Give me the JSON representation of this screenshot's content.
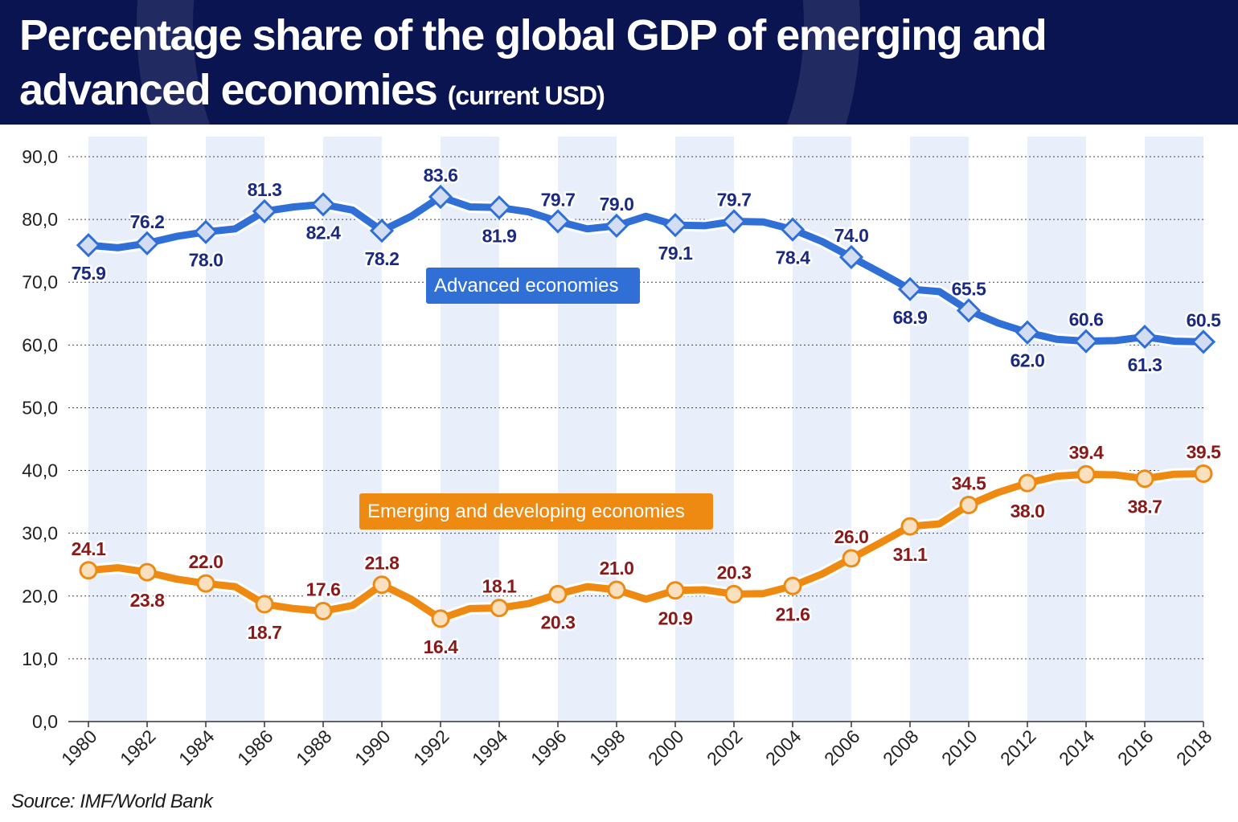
{
  "header": {
    "title": "Percentage share of the global GDP of emerging and advanced economies",
    "subtitle": "(current USD)"
  },
  "source": "Source: IMF/World Bank",
  "colors": {
    "header_bg": "#0a1450",
    "advanced": "#2f6fd6",
    "emerging": "#ee8a12",
    "band": "#e8effa"
  },
  "chart_data": {
    "type": "line",
    "title": "Percentage share of the global GDP of emerging and advanced economies",
    "subtitle": "(current USD)",
    "xlabel": "",
    "ylabel": "",
    "ylim": [
      0,
      90
    ],
    "yticks": [
      0,
      10,
      20,
      30,
      40,
      50,
      60,
      70,
      80,
      90
    ],
    "ytick_labels": [
      "0,0",
      "10,0",
      "20,0",
      "30,0",
      "40,0",
      "50,0",
      "60,0",
      "70,0",
      "80,0",
      "90,0"
    ],
    "grid": "horizontal dashed",
    "x": [
      1980,
      1981,
      1982,
      1983,
      1984,
      1985,
      1986,
      1987,
      1988,
      1989,
      1990,
      1991,
      1992,
      1993,
      1994,
      1995,
      1996,
      1997,
      1998,
      1999,
      2000,
      2001,
      2002,
      2003,
      2004,
      2005,
      2006,
      2007,
      2008,
      2009,
      2010,
      2011,
      2012,
      2013,
      2014,
      2015,
      2016,
      2017,
      2018
    ],
    "xtick_labels": [
      "1980",
      "1982",
      "1984",
      "1986",
      "1988",
      "1990",
      "1992",
      "1994",
      "1996",
      "1998",
      "2000",
      "2002",
      "2004",
      "2006",
      "2008",
      "2010",
      "2012",
      "2014",
      "2016",
      "2018"
    ],
    "series": [
      {
        "name": "Advanced economies",
        "marker": "diamond",
        "values": [
          75.9,
          75.5,
          76.2,
          77.3,
          78.0,
          78.5,
          81.3,
          82.0,
          82.4,
          81.5,
          78.2,
          80.5,
          83.6,
          82.0,
          81.9,
          81.2,
          79.7,
          78.5,
          79.0,
          80.5,
          79.1,
          79.0,
          79.7,
          79.6,
          78.4,
          76.5,
          74.0,
          71.5,
          68.9,
          68.5,
          65.5,
          63.5,
          62.0,
          60.9,
          60.6,
          60.7,
          61.3,
          60.6,
          60.5
        ]
      },
      {
        "name": "Emerging and developing economies",
        "marker": "circle",
        "values": [
          24.1,
          24.5,
          23.8,
          22.7,
          22.0,
          21.5,
          18.7,
          18.0,
          17.6,
          18.5,
          21.8,
          19.5,
          16.4,
          18.0,
          18.1,
          18.8,
          20.3,
          21.5,
          21.0,
          19.5,
          20.9,
          21.0,
          20.3,
          20.4,
          21.6,
          23.5,
          26.0,
          28.5,
          31.1,
          31.5,
          34.5,
          36.5,
          38.0,
          39.1,
          39.4,
          39.3,
          38.7,
          39.4,
          39.5
        ]
      }
    ],
    "data_labels": {
      "advanced": [
        {
          "year": 1980,
          "text": "75.9"
        },
        {
          "year": 1982,
          "text": "76.2"
        },
        {
          "year": 1984,
          "text": "78.0"
        },
        {
          "year": 1986,
          "text": "81.3"
        },
        {
          "year": 1988,
          "text": "82.4"
        },
        {
          "year": 1990,
          "text": "78.2"
        },
        {
          "year": 1992,
          "text": "83.6"
        },
        {
          "year": 1994,
          "text": "81.9"
        },
        {
          "year": 1996,
          "text": "79.7"
        },
        {
          "year": 1998,
          "text": "79.0"
        },
        {
          "year": 2000,
          "text": "79.1"
        },
        {
          "year": 2002,
          "text": "79.7"
        },
        {
          "year": 2004,
          "text": "78.4"
        },
        {
          "year": 2006,
          "text": "74.0"
        },
        {
          "year": 2008,
          "text": "68.9"
        },
        {
          "year": 2010,
          "text": "65.5"
        },
        {
          "year": 2012,
          "text": "62.0"
        },
        {
          "year": 2014,
          "text": "60.6"
        },
        {
          "year": 2016,
          "text": "61.3"
        },
        {
          "year": 2018,
          "text": "60.5"
        }
      ],
      "emerging": [
        {
          "year": 1980,
          "text": "24.1"
        },
        {
          "year": 1982,
          "text": "23.8"
        },
        {
          "year": 1984,
          "text": "22.0"
        },
        {
          "year": 1986,
          "text": "18.7"
        },
        {
          "year": 1988,
          "text": "17.6"
        },
        {
          "year": 1990,
          "text": "21.8"
        },
        {
          "year": 1992,
          "text": "16.4"
        },
        {
          "year": 1994,
          "text": "18.1"
        },
        {
          "year": 1996,
          "text": "20.3"
        },
        {
          "year": 1998,
          "text": "21.0"
        },
        {
          "year": 2000,
          "text": "20.9"
        },
        {
          "year": 2002,
          "text": "20.3"
        },
        {
          "year": 2004,
          "text": "21.6"
        },
        {
          "year": 2006,
          "text": "26.0"
        },
        {
          "year": 2008,
          "text": "31.1"
        },
        {
          "year": 2010,
          "text": "34.5"
        },
        {
          "year": 2012,
          "text": "38.0"
        },
        {
          "year": 2014,
          "text": "39.4"
        },
        {
          "year": 2016,
          "text": "38.7"
        },
        {
          "year": 2018,
          "text": "39.5"
        }
      ]
    }
  }
}
